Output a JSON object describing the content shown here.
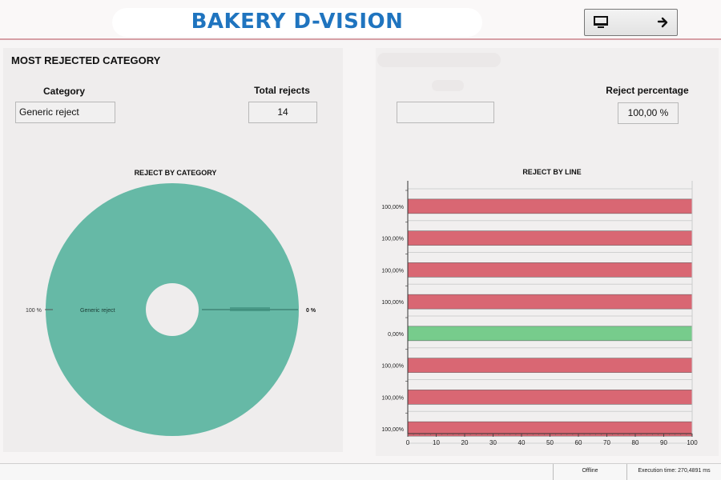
{
  "header": {
    "title": "BAKERY D-VISION",
    "nav_button_icon": "monitor-icon",
    "nav_arrow_icon": "arrow-right-icon"
  },
  "left": {
    "section_title": "MOST REJECTED CATEGORY",
    "category_label": "Category",
    "category_value": "Generic reject",
    "total_rejects_label": "Total rejects",
    "total_rejects_value": "14"
  },
  "right": {
    "reject_percentage_label": "Reject percentage",
    "reject_percentage_value": "100,00 %",
    "empty_field_value": ""
  },
  "chart_data": [
    {
      "type": "pie",
      "title": "REJECT BY CATEGORY",
      "slices": [
        {
          "label": "Generic reject",
          "value": 100,
          "percent_label": "100 %",
          "color": "#66b9a6"
        },
        {
          "label": "",
          "value": 0,
          "percent_label": "0 %",
          "color": "#5aa593"
        }
      ]
    },
    {
      "type": "bar",
      "orientation": "horizontal",
      "title": "REJECT BY LINE",
      "categories": [
        "100,00%",
        "100,00%",
        "100,00%",
        "100,00%",
        "0,00%",
        "100,00%",
        "100,00%",
        "100,00%"
      ],
      "values": [
        100,
        100,
        100,
        100,
        100,
        100,
        100,
        100
      ],
      "bar_colors": [
        "#d96773",
        "#d96773",
        "#d96773",
        "#d96773",
        "#77cc8c",
        "#d96773",
        "#d96773",
        "#d96773"
      ],
      "xlim": [
        0,
        100
      ],
      "xticks": [
        "0",
        "10",
        "20",
        "30",
        "40",
        "50",
        "60",
        "70",
        "80",
        "90",
        "100"
      ]
    }
  ],
  "status": {
    "connection": "Offline",
    "execution_time": "Execution time: 270,4891 ms"
  }
}
